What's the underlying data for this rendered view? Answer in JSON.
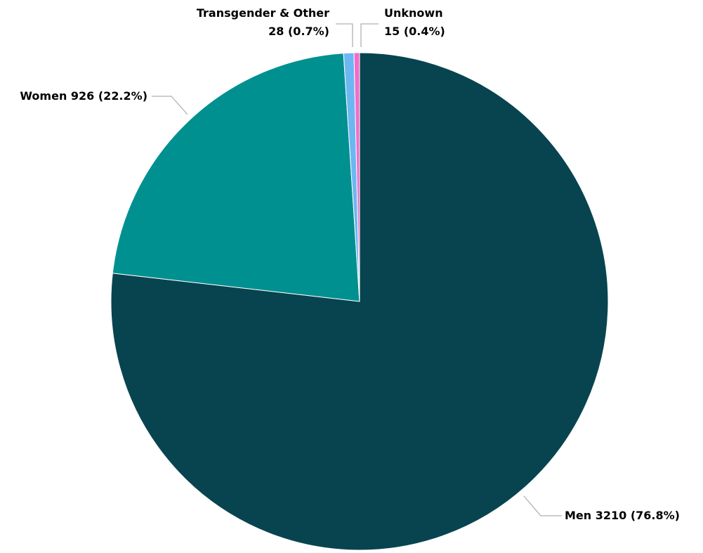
{
  "chart_data": {
    "type": "pie",
    "title": "",
    "slices": [
      {
        "name": "Men",
        "label": "Men 3210 (76.8%)",
        "value": 3210,
        "percent": 76.8,
        "color": "#08444f"
      },
      {
        "name": "Women",
        "label": "Women 926 (22.2%)",
        "value": 926,
        "percent": 22.2,
        "color": "#009090"
      },
      {
        "name": "Transgender & Other",
        "label_lines": [
          "Transgender & Other",
          "28 (0.7%)"
        ],
        "value": 28,
        "percent": 0.7,
        "color": "#6cb7f2"
      },
      {
        "name": "Unknown",
        "label_lines": [
          "Unknown",
          "15 (0.4%)"
        ],
        "value": 15,
        "percent": 0.4,
        "color": "#f26cc8"
      }
    ],
    "legend": "none"
  }
}
